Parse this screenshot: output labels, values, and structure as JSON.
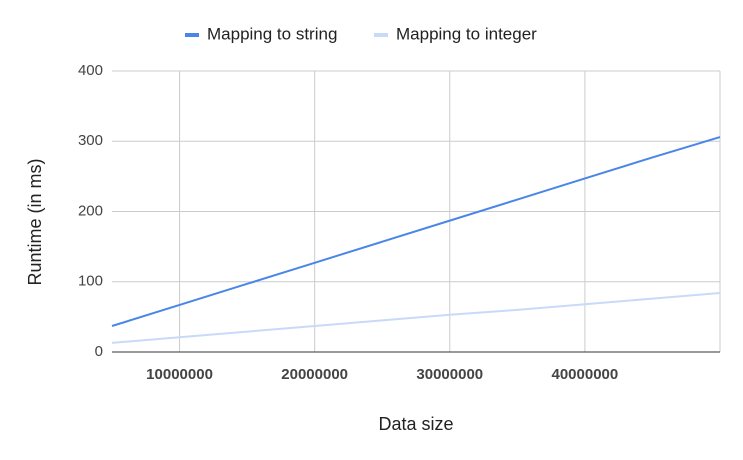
{
  "chart_data": {
    "type": "line",
    "x": [
      5000000,
      10000000,
      15000000,
      20000000,
      25000000,
      30000000,
      35000000,
      40000000,
      45000000,
      50000000
    ],
    "series": [
      {
        "name": "Mapping to string",
        "color": "#4a86e8",
        "values": [
          37,
          67,
          97,
          127,
          157,
          187,
          217,
          247,
          277,
          306
        ]
      },
      {
        "name": "Mapping to integer",
        "color": "#c9daf8",
        "values": [
          13,
          21,
          29,
          37,
          45,
          53,
          60,
          68,
          76,
          84
        ]
      }
    ],
    "x_label": "Data size",
    "y_label": "Runtime (in ms)",
    "xlim": [
      5000000,
      50000000
    ],
    "xticks": [
      10000000,
      20000000,
      30000000,
      40000000
    ],
    "ylim": [
      0,
      400
    ],
    "yticks": [
      0,
      100,
      200,
      300,
      400
    ],
    "grid": true,
    "legend": "top"
  }
}
